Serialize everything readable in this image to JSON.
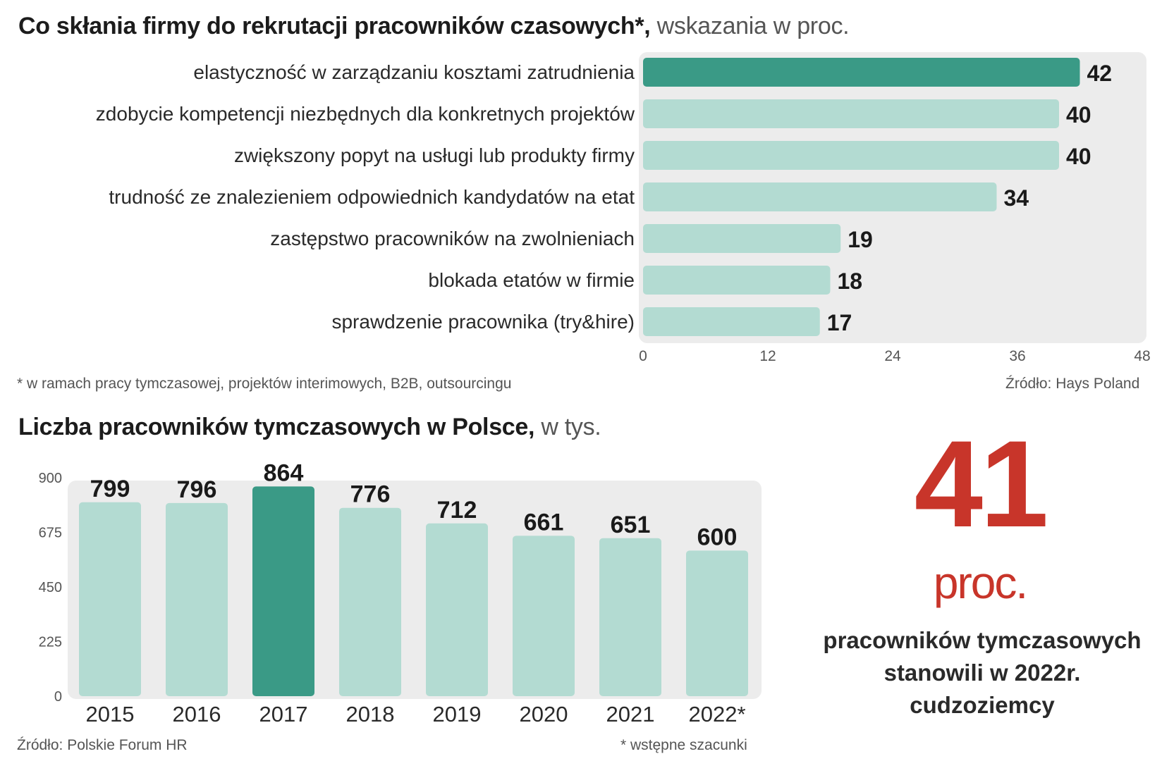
{
  "chart_data": [
    {
      "type": "bar",
      "orientation": "horizontal",
      "title": "Co skłania firmy do rekrutacji pracowników czasowych*",
      "subtitle": "wskazania w proc.",
      "categories": [
        "elastyczność w zarządzaniu kosztami zatrudnienia",
        "zdobycie kompetencji niezbędnych dla konkretnych projektów",
        "zwiększony popyt na usługi lub produkty firmy",
        "trudność ze znalezieniem odpowiednich kandydatów na etat",
        "zastępstwo pracowników na zwolnieniach",
        "blokada etatów w firmie",
        "sprawdzenie pracownika (try&hire)"
      ],
      "values": [
        42,
        40,
        40,
        34,
        19,
        18,
        17
      ],
      "highlight_index": 0,
      "xlim": [
        0,
        48
      ],
      "xticks": [
        "0",
        "12",
        "24",
        "36",
        "48"
      ],
      "footnote": "* w ramach pracy tymczasowej, projektów interimowych, B2B, outsourcingu",
      "source": "Źródło: Hays Poland",
      "colors": {
        "bar": "#b3dbd2",
        "highlight": "#3a9a86",
        "panel": "#ececec"
      }
    },
    {
      "type": "bar",
      "orientation": "vertical",
      "title": "Liczba pracowników tymczasowych w Polsce",
      "subtitle": "w tys.",
      "categories": [
        "2015",
        "2016",
        "2017",
        "2018",
        "2019",
        "2020",
        "2021",
        "2022*"
      ],
      "values": [
        799,
        796,
        864,
        776,
        712,
        661,
        651,
        600
      ],
      "highlight_index": 2,
      "ylim": [
        0,
        900
      ],
      "yticks": [
        "0",
        "225",
        "450",
        "675",
        "900"
      ],
      "source": "Źródło: Polskie Forum HR",
      "footnote": "* wstępne szacunki",
      "colors": {
        "bar": "#b3dbd2",
        "highlight": "#3a9a86",
        "panel": "#ececec"
      }
    }
  ],
  "highlight": {
    "number": "41",
    "unit": "proc.",
    "caption_lines": [
      "pracowników tymczasowych",
      "stanowili w 2022r.",
      "cudzoziemcy"
    ],
    "color": "#c8352a"
  }
}
